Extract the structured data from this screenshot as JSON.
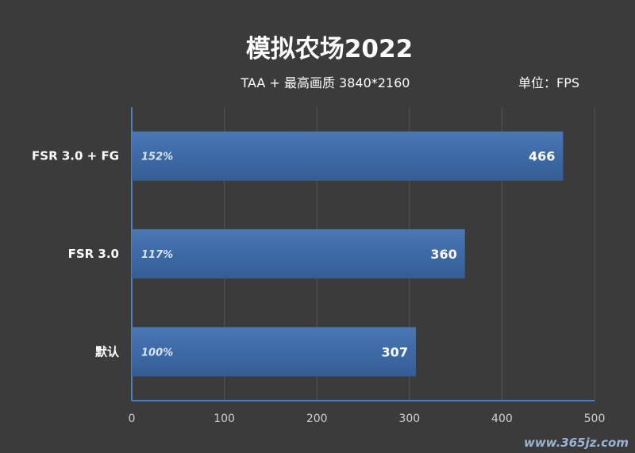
{
  "chart_data": {
    "type": "bar",
    "orientation": "horizontal",
    "title": "模拟农场2022",
    "subtitle": "TAA + 最高画质 3840*2160",
    "unit_label": "单位：FPS",
    "categories": [
      "FSR 3.0 + FG",
      "FSR 3.0",
      "默认"
    ],
    "values": [
      466,
      360,
      307
    ],
    "percent_labels": [
      "152%",
      "117%",
      "100%"
    ],
    "xlim": [
      0,
      500
    ],
    "xticks": [
      "0",
      "100",
      "200",
      "300",
      "400",
      "500"
    ],
    "grid": true,
    "colors": {
      "bar": "#3d6aa6",
      "background": "#3b3b3b",
      "axis": "#4f7fbd",
      "grid": "#555555"
    }
  },
  "watermark": "www.365jz.com"
}
